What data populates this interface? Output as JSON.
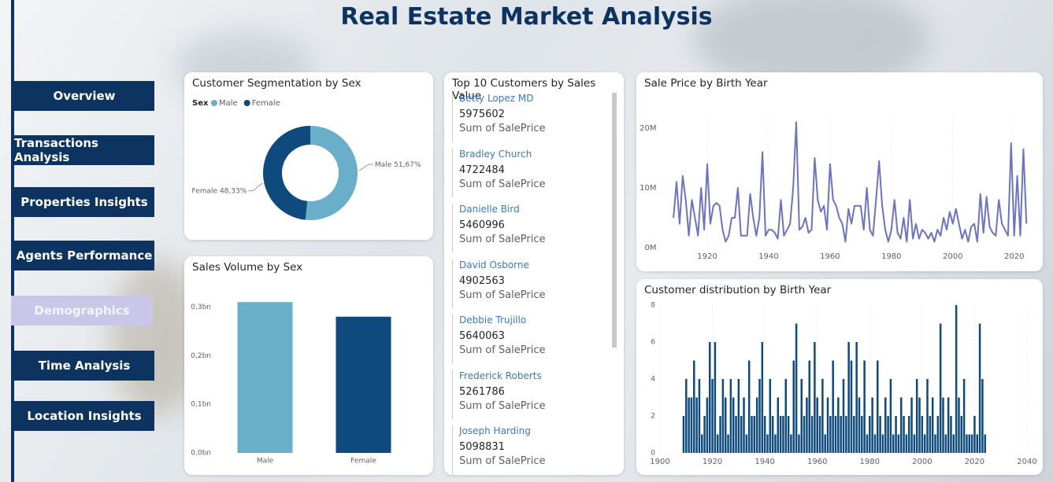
{
  "header": {
    "title": "Real Estate Market Analysis"
  },
  "nav": {
    "items": [
      {
        "label": "Overview",
        "active": false
      },
      {
        "label": "Transactions Analysis",
        "active": false
      },
      {
        "label": "Properties Insights",
        "active": false
      },
      {
        "label": "Agents Performance",
        "active": false
      },
      {
        "label": "Demographics",
        "active": true
      },
      {
        "label": "Time Analysis",
        "active": false
      },
      {
        "label": "Location Insights",
        "active": false
      }
    ]
  },
  "top_customers": {
    "title": "Top 10 Customers by Sales Value",
    "measure_label": "Sum of SalePrice",
    "rows": [
      {
        "name": "Betty Lopez MD",
        "value": 5975602
      },
      {
        "name": "Bradley Church",
        "value": 4722484
      },
      {
        "name": "Danielle Bird",
        "value": 5460996
      },
      {
        "name": "David Osborne",
        "value": 4902563
      },
      {
        "name": "Debbie Trujillo",
        "value": 5640063
      },
      {
        "name": "Frederick Roberts",
        "value": 5261786
      },
      {
        "name": "Joseph Harding",
        "value": 5098831
      }
    ]
  },
  "chart_data": [
    {
      "type": "donut",
      "title": "Customer Segmentation by Sex",
      "legend_title": "Sex",
      "categories": [
        "Male",
        "Female"
      ],
      "values": [
        51.67,
        48.33
      ],
      "value_labels": [
        "51,67%",
        "48,33%"
      ],
      "colors": [
        "#6aafc9",
        "#0e4a7e"
      ]
    },
    {
      "type": "bar",
      "title": "Sales Volume by Sex",
      "categories": [
        "Male",
        "Female"
      ],
      "values": [
        0.31,
        0.28
      ],
      "colors": [
        "#6aafc9",
        "#0e4a7e"
      ],
      "ylim": [
        0,
        0.32
      ],
      "yticks": [
        {
          "value": 0,
          "label": "0,0bn"
        },
        {
          "value": 0.1,
          "label": "0,1bn"
        },
        {
          "value": 0.2,
          "label": "0,2bn"
        },
        {
          "value": 0.3,
          "label": "0,3bn"
        }
      ]
    },
    {
      "type": "line",
      "title": "Sale Price by Birth Year",
      "color": "#6c72c6",
      "grid": "x",
      "x": [
        1909,
        1910,
        1911,
        1912,
        1913,
        1914,
        1915,
        1916,
        1917,
        1918,
        1919,
        1920,
        1921,
        1922,
        1923,
        1924,
        1925,
        1926,
        1927,
        1928,
        1929,
        1930,
        1931,
        1932,
        1933,
        1934,
        1935,
        1936,
        1937,
        1938,
        1939,
        1940,
        1941,
        1942,
        1943,
        1944,
        1945,
        1946,
        1947,
        1948,
        1949,
        1950,
        1951,
        1952,
        1953,
        1954,
        1955,
        1956,
        1957,
        1958,
        1959,
        1960,
        1961,
        1962,
        1963,
        1964,
        1965,
        1966,
        1967,
        1968,
        1969,
        1970,
        1971,
        1972,
        1973,
        1974,
        1975,
        1976,
        1977,
        1978,
        1979,
        1980,
        1981,
        1982,
        1983,
        1984,
        1985,
        1986,
        1987,
        1988,
        1989,
        1990,
        1991,
        1992,
        1993,
        1994,
        1995,
        1996,
        1997,
        1998,
        1999,
        2000,
        2001,
        2002,
        2003,
        2004,
        2005,
        2006,
        2007,
        2008,
        2009,
        2010,
        2011,
        2012,
        2013,
        2014,
        2015,
        2016,
        2017,
        2018,
        2019,
        2020,
        2021,
        2022,
        2023,
        2024
      ],
      "values": [
        5,
        11,
        4,
        12,
        8,
        2,
        8,
        5,
        2,
        10,
        3,
        14,
        4,
        7,
        7.5,
        7,
        3,
        1,
        2,
        5,
        5,
        10,
        2,
        2,
        2,
        9,
        5,
        2,
        5,
        16,
        2,
        3,
        3,
        2.5,
        1.5,
        8,
        2,
        3,
        4,
        10,
        21,
        3,
        3.5,
        5,
        2.5,
        3,
        15,
        8,
        6,
        7,
        3,
        14,
        8,
        7,
        5,
        4,
        1,
        6.5,
        4,
        7,
        7,
        7,
        3,
        10,
        3,
        2,
        8,
        14.5,
        7,
        3,
        1,
        3,
        8,
        2.5,
        1.5,
        5,
        1,
        8,
        1.5,
        4,
        1.5,
        3,
        2.5,
        1.5,
        2.5,
        1,
        3,
        2,
        5,
        3,
        6,
        4,
        6.5,
        4,
        1.5,
        3,
        1,
        3.5,
        4,
        1,
        9,
        2.5,
        8.5,
        3.5,
        2.5,
        2,
        8,
        4,
        3,
        2,
        17.5,
        2,
        12,
        2,
        16.5,
        4
      ],
      "xlim": [
        1905,
        2027
      ],
      "ylim": [
        0,
        22
      ],
      "xticks": [
        1920,
        1940,
        1960,
        1980,
        2000,
        2020
      ],
      "yticks": [
        {
          "value": 0,
          "label": "0M"
        },
        {
          "value": 10,
          "label": "10M"
        },
        {
          "value": 20,
          "label": "20M"
        }
      ]
    },
    {
      "type": "bar",
      "title": "Customer distribution by Birth Year",
      "color": "#0e4a7e",
      "grid": "x",
      "x": [
        1909,
        1910,
        1911,
        1912,
        1913,
        1914,
        1915,
        1916,
        1917,
        1918,
        1919,
        1920,
        1921,
        1922,
        1923,
        1924,
        1925,
        1926,
        1927,
        1928,
        1929,
        1930,
        1931,
        1932,
        1933,
        1934,
        1935,
        1936,
        1937,
        1938,
        1939,
        1940,
        1941,
        1942,
        1943,
        1944,
        1945,
        1946,
        1947,
        1948,
        1949,
        1950,
        1951,
        1952,
        1953,
        1954,
        1955,
        1956,
        1957,
        1958,
        1959,
        1960,
        1961,
        1962,
        1963,
        1964,
        1965,
        1966,
        1967,
        1968,
        1969,
        1970,
        1971,
        1972,
        1973,
        1974,
        1975,
        1976,
        1977,
        1978,
        1979,
        1980,
        1981,
        1982,
        1983,
        1984,
        1985,
        1986,
        1987,
        1988,
        1989,
        1990,
        1991,
        1992,
        1993,
        1994,
        1995,
        1996,
        1997,
        1998,
        1999,
        2000,
        2001,
        2002,
        2003,
        2004,
        2005,
        2006,
        2007,
        2008,
        2009,
        2010,
        2011,
        2012,
        2013,
        2014,
        2015,
        2016,
        2017,
        2018,
        2019,
        2020,
        2021,
        2022,
        2023,
        2024
      ],
      "values": [
        2,
        4,
        3,
        3,
        5,
        3,
        4,
        1,
        2,
        3,
        6,
        4,
        6,
        1,
        2,
        4,
        3,
        1,
        4,
        3,
        2,
        4,
        2,
        3,
        1,
        5,
        2,
        2,
        3,
        4,
        6,
        2,
        1,
        4,
        2,
        1,
        3,
        2,
        2,
        4,
        2,
        1,
        5,
        7,
        1,
        4,
        2,
        3,
        5,
        2,
        6,
        3,
        2,
        4,
        1,
        3,
        2,
        5,
        2,
        3,
        2,
        4,
        2,
        6,
        5,
        2,
        6,
        3,
        2,
        5,
        1,
        2,
        3,
        1,
        5,
        2,
        1,
        3,
        2,
        4,
        1,
        2,
        1,
        3,
        2,
        1,
        2,
        3,
        1,
        4,
        3,
        2,
        1,
        4,
        2,
        3,
        1,
        2,
        7,
        3,
        1,
        3,
        2,
        1,
        8,
        3,
        2,
        4,
        1,
        1,
        1,
        2,
        1,
        7,
        4,
        1
      ],
      "xlim": [
        1900,
        2040
      ],
      "ylim": [
        0,
        8
      ],
      "xticks": [
        1900,
        1920,
        1940,
        1960,
        1980,
        2000,
        2020,
        2040
      ],
      "yticks": [
        0,
        2,
        4,
        6,
        8
      ]
    }
  ]
}
